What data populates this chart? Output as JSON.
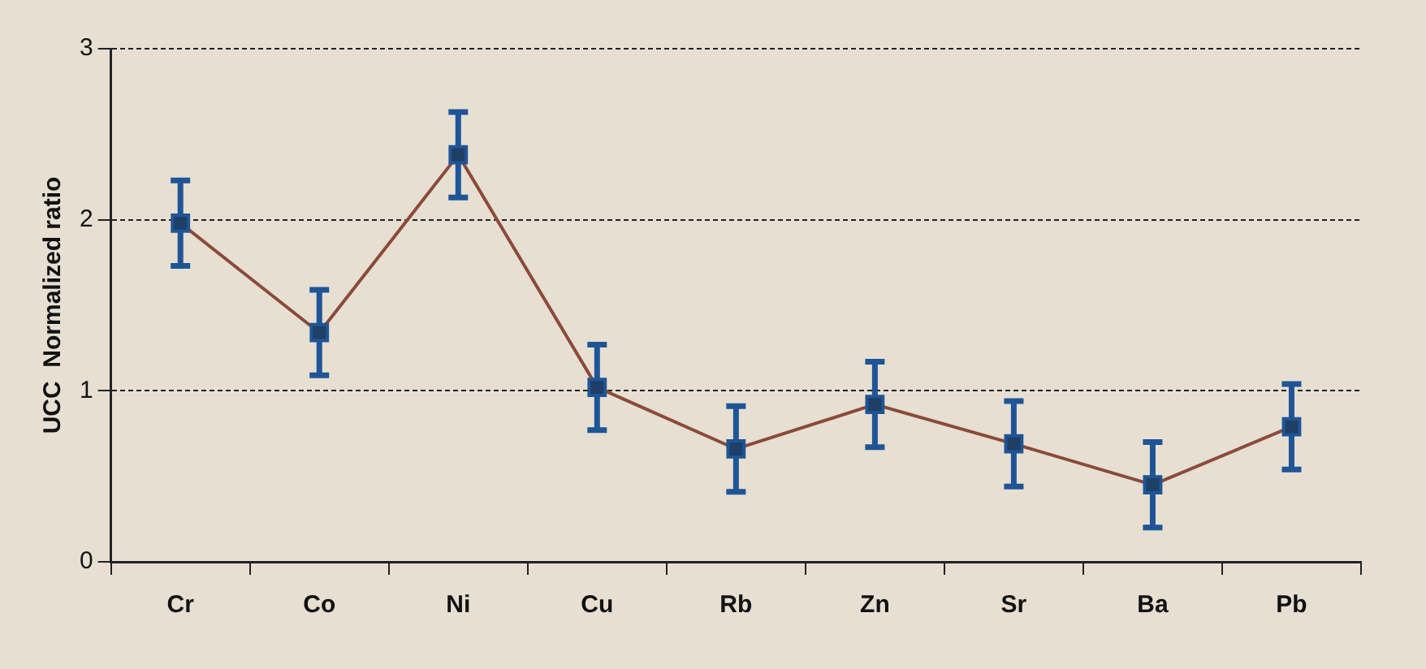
{
  "chart_data": {
    "type": "line",
    "ylabel": "UCC  Normalized ratio",
    "categories": [
      "Cr",
      "Co",
      "Ni",
      "Cu",
      "Rb",
      "Zn",
      "Sr",
      "Ba",
      "Pb"
    ],
    "series": [
      {
        "color": "#8b4a3a",
        "values": [
          1.98,
          1.34,
          2.38,
          1.02,
          0.66,
          0.92,
          0.69,
          0.45,
          0.79
        ],
        "errors": [
          0.25,
          0.25,
          0.25,
          0.25,
          0.25,
          0.25,
          0.25,
          0.25,
          0.25
        ]
      }
    ],
    "ylim": [
      0,
      3
    ],
    "yticks": [
      0,
      1,
      2,
      3
    ],
    "grid": "y",
    "legend": false,
    "marker": "square",
    "line_style": "solid"
  }
}
